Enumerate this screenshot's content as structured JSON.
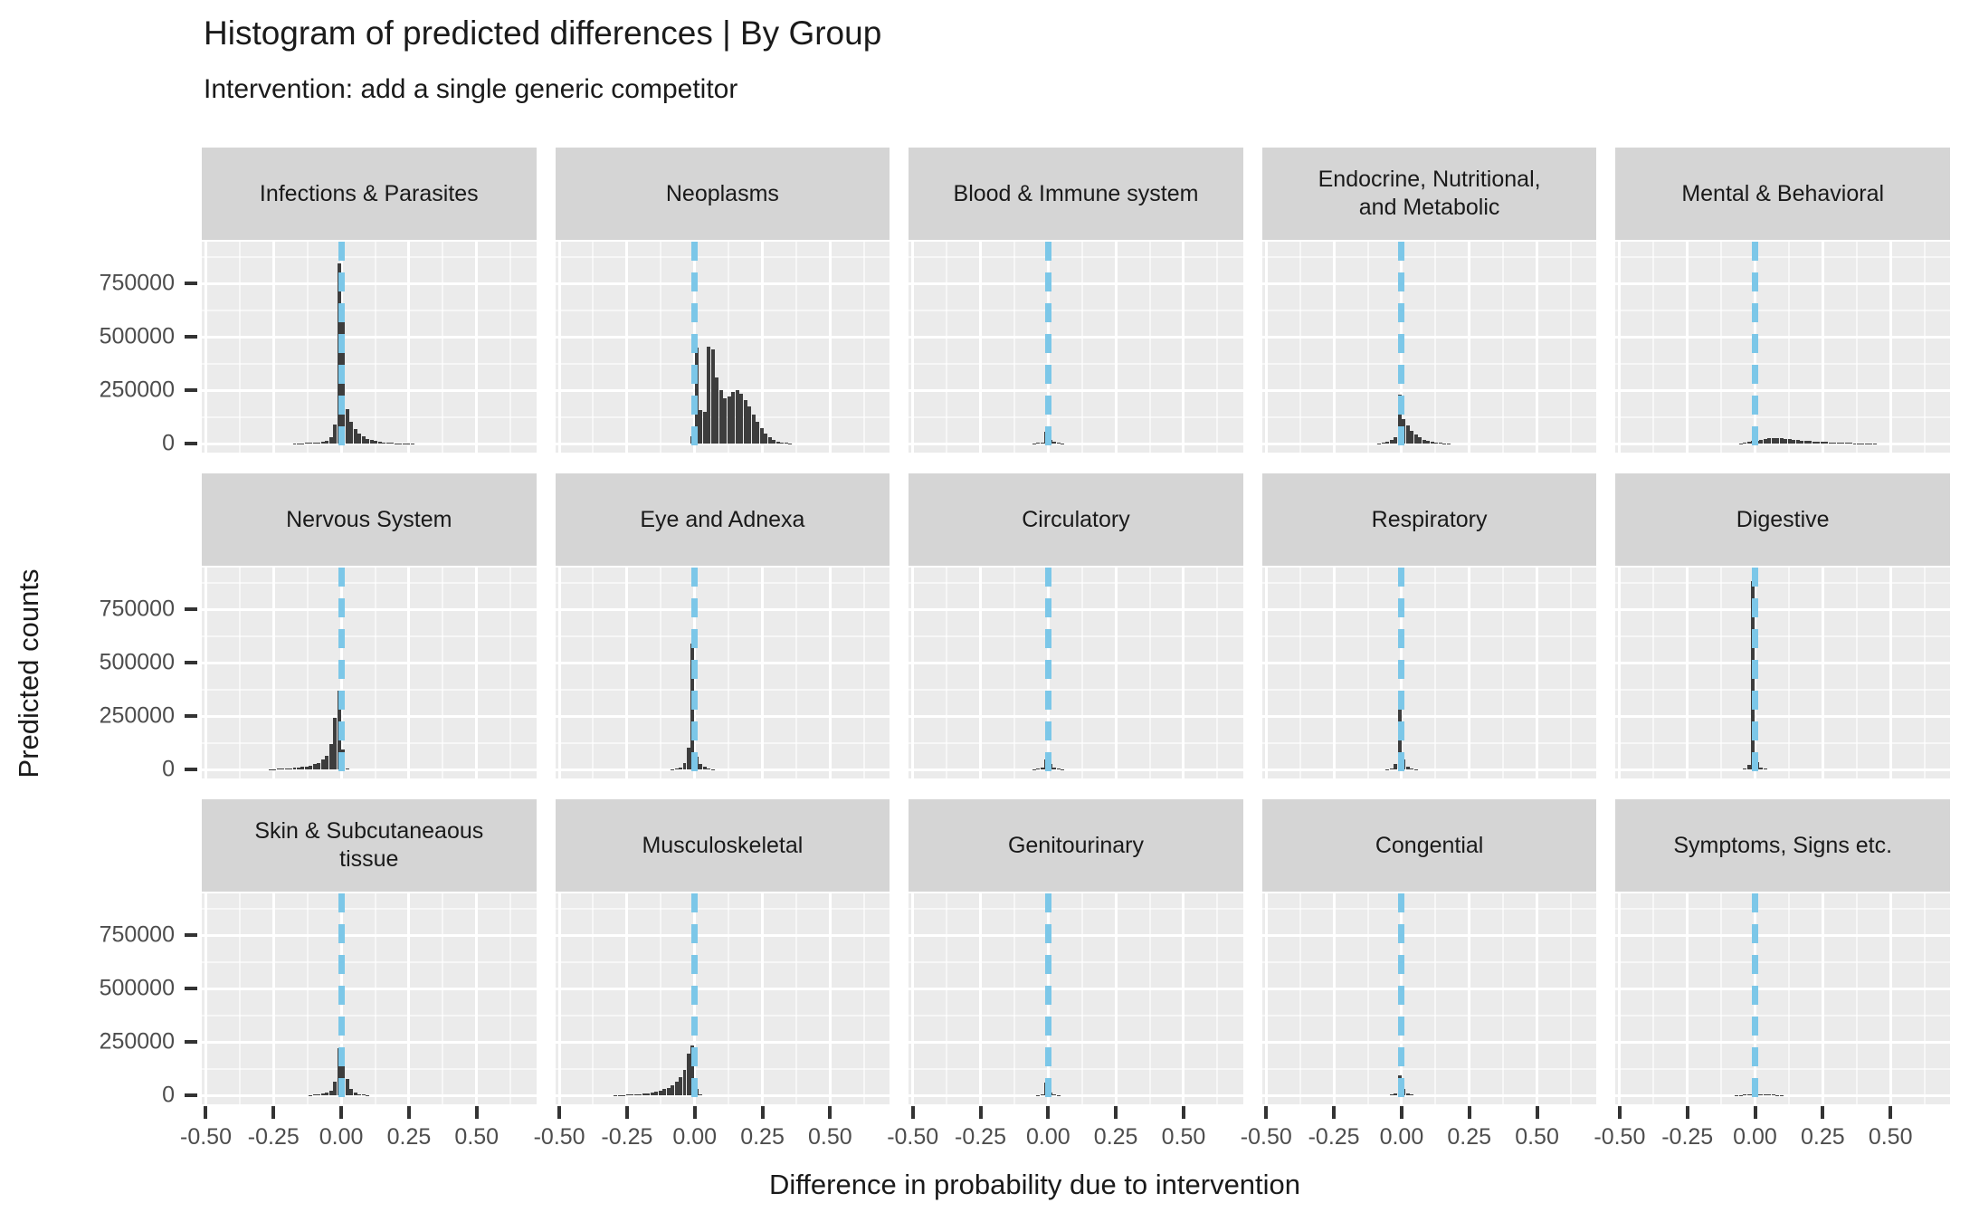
{
  "header": {
    "title": "Histogram of predicted differences | By Group",
    "subtitle": "Intervention: add a single generic competitor"
  },
  "axes": {
    "x_title": "Difference in probability due to intervention",
    "y_title": "Predicted counts",
    "x_tick_labels": [
      "-0.50",
      "-0.25",
      "0.00",
      "0.25",
      "0.50"
    ],
    "x_tick_values": [
      -0.5,
      -0.25,
      0,
      0.25,
      0.5
    ],
    "x_minor_values": [
      -0.375,
      -0.125,
      0.125,
      0.375,
      0.625
    ],
    "y_tick_labels": [
      "0",
      "250000",
      "500000",
      "750000"
    ],
    "y_tick_values": [
      0,
      250000,
      500000,
      750000
    ],
    "y_minor_values": [
      125000,
      375000,
      625000,
      875000
    ]
  },
  "colors": {
    "panel_background": "#ebebeb",
    "strip_background": "#d5d5d5",
    "gridline": "#ffffff",
    "bar": "#3d3d3d",
    "reference_line": "#7cc7e8",
    "tick_mark": "#333333",
    "tick_label": "#4d4d4d",
    "text": "#1a1a1a"
  },
  "chart_data": {
    "type": "bar",
    "subtype": "faceted-histograms",
    "facet_layout": {
      "rows": 3,
      "cols": 5
    },
    "bin_width": 0.015,
    "reference_line_x": 0,
    "x_range": [
      -0.515,
      0.72
    ],
    "y_range": [
      -42000,
      945000
    ],
    "grid": true,
    "panels": [
      {
        "label": "Infections & Parasites",
        "bars": [
          [
            -0.18,
            1200
          ],
          [
            -0.165,
            1600
          ],
          [
            -0.15,
            2000
          ],
          [
            -0.135,
            2500
          ],
          [
            -0.12,
            3000
          ],
          [
            -0.105,
            4000
          ],
          [
            -0.09,
            5500
          ],
          [
            -0.075,
            8000
          ],
          [
            -0.06,
            13000
          ],
          [
            -0.045,
            28000
          ],
          [
            -0.03,
            88000
          ],
          [
            -0.015,
            845000
          ],
          [
            0,
            630000
          ],
          [
            0.015,
            160000
          ],
          [
            0.03,
            100000
          ],
          [
            0.045,
            70000
          ],
          [
            0.06,
            48000
          ],
          [
            0.075,
            33000
          ],
          [
            0.09,
            23000
          ],
          [
            0.105,
            16000
          ],
          [
            0.12,
            11000
          ],
          [
            0.135,
            8000
          ],
          [
            0.15,
            5500
          ],
          [
            0.165,
            4000
          ],
          [
            0.18,
            3000
          ],
          [
            0.195,
            2200
          ],
          [
            0.21,
            1600
          ],
          [
            0.225,
            1200
          ],
          [
            0.24,
            900
          ],
          [
            0.255,
            700
          ]
        ]
      },
      {
        "label": "Neoplasms",
        "bars": [
          [
            -0.015,
            35000
          ],
          [
            0,
            450000
          ],
          [
            0.015,
            155000
          ],
          [
            0.03,
            150000
          ],
          [
            0.045,
            455000
          ],
          [
            0.06,
            440000
          ],
          [
            0.075,
            310000
          ],
          [
            0.09,
            250000
          ],
          [
            0.105,
            212000
          ],
          [
            0.12,
            222000
          ],
          [
            0.135,
            243000
          ],
          [
            0.15,
            250000
          ],
          [
            0.165,
            235000
          ],
          [
            0.18,
            205000
          ],
          [
            0.195,
            172000
          ],
          [
            0.21,
            138000
          ],
          [
            0.225,
            102000
          ],
          [
            0.24,
            72000
          ],
          [
            0.255,
            46000
          ],
          [
            0.27,
            28000
          ],
          [
            0.285,
            16000
          ],
          [
            0.3,
            9000
          ],
          [
            0.315,
            5000
          ],
          [
            0.33,
            2500
          ],
          [
            0.345,
            1200
          ]
        ]
      },
      {
        "label": "Blood & Immune system",
        "bars": [
          [
            -0.06,
            1500
          ],
          [
            -0.045,
            3000
          ],
          [
            -0.03,
            6500
          ],
          [
            -0.015,
            57000
          ],
          [
            0,
            18000
          ],
          [
            0.015,
            8000
          ],
          [
            0.03,
            3500
          ],
          [
            0.045,
            1500
          ]
        ]
      },
      {
        "label": "Endocrine, Nutritional,\nand Metabolic",
        "bars": [
          [
            -0.09,
            2000
          ],
          [
            -0.075,
            4000
          ],
          [
            -0.06,
            9000
          ],
          [
            -0.045,
            18000
          ],
          [
            -0.03,
            32000
          ],
          [
            -0.015,
            228000
          ],
          [
            0,
            115000
          ],
          [
            0.015,
            85000
          ],
          [
            0.03,
            60000
          ],
          [
            0.045,
            42000
          ],
          [
            0.06,
            28000
          ],
          [
            0.075,
            18000
          ],
          [
            0.09,
            12000
          ],
          [
            0.105,
            8000
          ],
          [
            0.12,
            5000
          ],
          [
            0.135,
            3200
          ],
          [
            0.15,
            2000
          ],
          [
            0.165,
            1300
          ]
        ]
      },
      {
        "label": "Mental & Behavioral",
        "bars": [
          [
            -0.06,
            2000
          ],
          [
            -0.045,
            4000
          ],
          [
            -0.03,
            7000
          ],
          [
            -0.015,
            11000
          ],
          [
            0,
            15000
          ],
          [
            0.015,
            19000
          ],
          [
            0.03,
            22000
          ],
          [
            0.045,
            24000
          ],
          [
            0.06,
            25000
          ],
          [
            0.075,
            25000
          ],
          [
            0.09,
            24000
          ],
          [
            0.105,
            22000
          ],
          [
            0.12,
            20000
          ],
          [
            0.135,
            18000
          ],
          [
            0.15,
            16000
          ],
          [
            0.165,
            14500
          ],
          [
            0.18,
            13000
          ],
          [
            0.195,
            11500
          ],
          [
            0.21,
            10000
          ],
          [
            0.225,
            9000
          ],
          [
            0.24,
            8000
          ],
          [
            0.255,
            7000
          ],
          [
            0.27,
            6000
          ],
          [
            0.285,
            5200
          ],
          [
            0.3,
            4500
          ],
          [
            0.315,
            3800
          ],
          [
            0.33,
            3200
          ],
          [
            0.345,
            2700
          ],
          [
            0.36,
            2200
          ],
          [
            0.375,
            1800
          ],
          [
            0.39,
            1400
          ],
          [
            0.405,
            1100
          ],
          [
            0.42,
            900
          ],
          [
            0.435,
            700
          ]
        ]
      },
      {
        "label": "Nervous System",
        "bars": [
          [
            -0.27,
            1500
          ],
          [
            -0.255,
            2000
          ],
          [
            -0.24,
            2600
          ],
          [
            -0.225,
            3300
          ],
          [
            -0.21,
            4200
          ],
          [
            -0.195,
            5500
          ],
          [
            -0.18,
            7000
          ],
          [
            -0.165,
            9000
          ],
          [
            -0.15,
            11500
          ],
          [
            -0.135,
            14500
          ],
          [
            -0.12,
            18500
          ],
          [
            -0.105,
            24000
          ],
          [
            -0.09,
            32000
          ],
          [
            -0.075,
            45000
          ],
          [
            -0.06,
            65000
          ],
          [
            -0.045,
            120000
          ],
          [
            -0.03,
            240000
          ],
          [
            -0.015,
            370000
          ],
          [
            0,
            95000
          ],
          [
            0.015,
            4000
          ]
        ]
      },
      {
        "label": "Eye and Adnexa",
        "bars": [
          [
            -0.09,
            2000
          ],
          [
            -0.075,
            4500
          ],
          [
            -0.06,
            10000
          ],
          [
            -0.045,
            30000
          ],
          [
            -0.03,
            100000
          ],
          [
            -0.015,
            590000
          ],
          [
            0,
            60000
          ],
          [
            0.015,
            25000
          ],
          [
            0.03,
            12000
          ],
          [
            0.045,
            5000
          ],
          [
            0.06,
            2000
          ]
        ]
      },
      {
        "label": "Circulatory",
        "bars": [
          [
            -0.06,
            1500
          ],
          [
            -0.045,
            3000
          ],
          [
            -0.03,
            8000
          ],
          [
            -0.015,
            45000
          ],
          [
            0,
            25000
          ],
          [
            0.015,
            10000
          ],
          [
            0.03,
            4000
          ],
          [
            0.045,
            1800
          ]
        ]
      },
      {
        "label": "Respiratory",
        "bars": [
          [
            -0.06,
            2000
          ],
          [
            -0.045,
            5000
          ],
          [
            -0.03,
            25000
          ],
          [
            -0.015,
            350000
          ],
          [
            0,
            45000
          ],
          [
            0.015,
            12000
          ],
          [
            0.03,
            5000
          ],
          [
            0.045,
            2000
          ]
        ]
      },
      {
        "label": "Digestive",
        "bars": [
          [
            -0.045,
            5000
          ],
          [
            -0.03,
            20000
          ],
          [
            -0.015,
            880000
          ],
          [
            0,
            35000
          ],
          [
            0.015,
            10000
          ],
          [
            0.03,
            4000
          ]
        ]
      },
      {
        "label": "Skin & Subcutaneaous\ntissue",
        "bars": [
          [
            -0.12,
            1500
          ],
          [
            -0.105,
            2500
          ],
          [
            -0.09,
            4000
          ],
          [
            -0.075,
            7000
          ],
          [
            -0.06,
            12000
          ],
          [
            -0.045,
            22000
          ],
          [
            -0.03,
            65000
          ],
          [
            -0.015,
            222000
          ],
          [
            0,
            160000
          ],
          [
            0.015,
            75000
          ],
          [
            0.03,
            30000
          ],
          [
            0.045,
            12000
          ],
          [
            0.06,
            5000
          ],
          [
            0.075,
            2500
          ],
          [
            0.09,
            1500
          ]
        ]
      },
      {
        "label": "Musculoskeletal",
        "bars": [
          [
            -0.3,
            1000
          ],
          [
            -0.285,
            1400
          ],
          [
            -0.27,
            1900
          ],
          [
            -0.255,
            2500
          ],
          [
            -0.24,
            3300
          ],
          [
            -0.225,
            4400
          ],
          [
            -0.21,
            5800
          ],
          [
            -0.195,
            7600
          ],
          [
            -0.18,
            10000
          ],
          [
            -0.165,
            13000
          ],
          [
            -0.15,
            17000
          ],
          [
            -0.135,
            22000
          ],
          [
            -0.12,
            28000
          ],
          [
            -0.105,
            36000
          ],
          [
            -0.09,
            47000
          ],
          [
            -0.075,
            62000
          ],
          [
            -0.06,
            85000
          ],
          [
            -0.045,
            120000
          ],
          [
            -0.03,
            195000
          ],
          [
            -0.015,
            235000
          ],
          [
            0,
            30000
          ],
          [
            0.015,
            3000
          ]
        ]
      },
      {
        "label": "Genitourinary",
        "bars": [
          [
            -0.045,
            2000
          ],
          [
            -0.03,
            5000
          ],
          [
            -0.015,
            58000
          ],
          [
            0,
            15000
          ],
          [
            0.015,
            5000
          ],
          [
            0.03,
            2000
          ]
        ]
      },
      {
        "label": "Congential",
        "bars": [
          [
            -0.045,
            2500
          ],
          [
            -0.03,
            9000
          ],
          [
            -0.015,
            95000
          ],
          [
            0,
            28000
          ],
          [
            0.015,
            7000
          ],
          [
            0.03,
            2500
          ]
        ]
      },
      {
        "label": "Symptoms, Signs etc.",
        "bars": [
          [
            -0.075,
            1200
          ],
          [
            -0.06,
            2000
          ],
          [
            -0.045,
            3000
          ],
          [
            -0.03,
            4200
          ],
          [
            -0.015,
            5000
          ],
          [
            0,
            5000
          ],
          [
            0.015,
            4500
          ],
          [
            0.03,
            4000
          ],
          [
            0.045,
            3200
          ],
          [
            0.06,
            2500
          ],
          [
            0.075,
            2000
          ],
          [
            0.09,
            1500
          ]
        ]
      }
    ]
  }
}
